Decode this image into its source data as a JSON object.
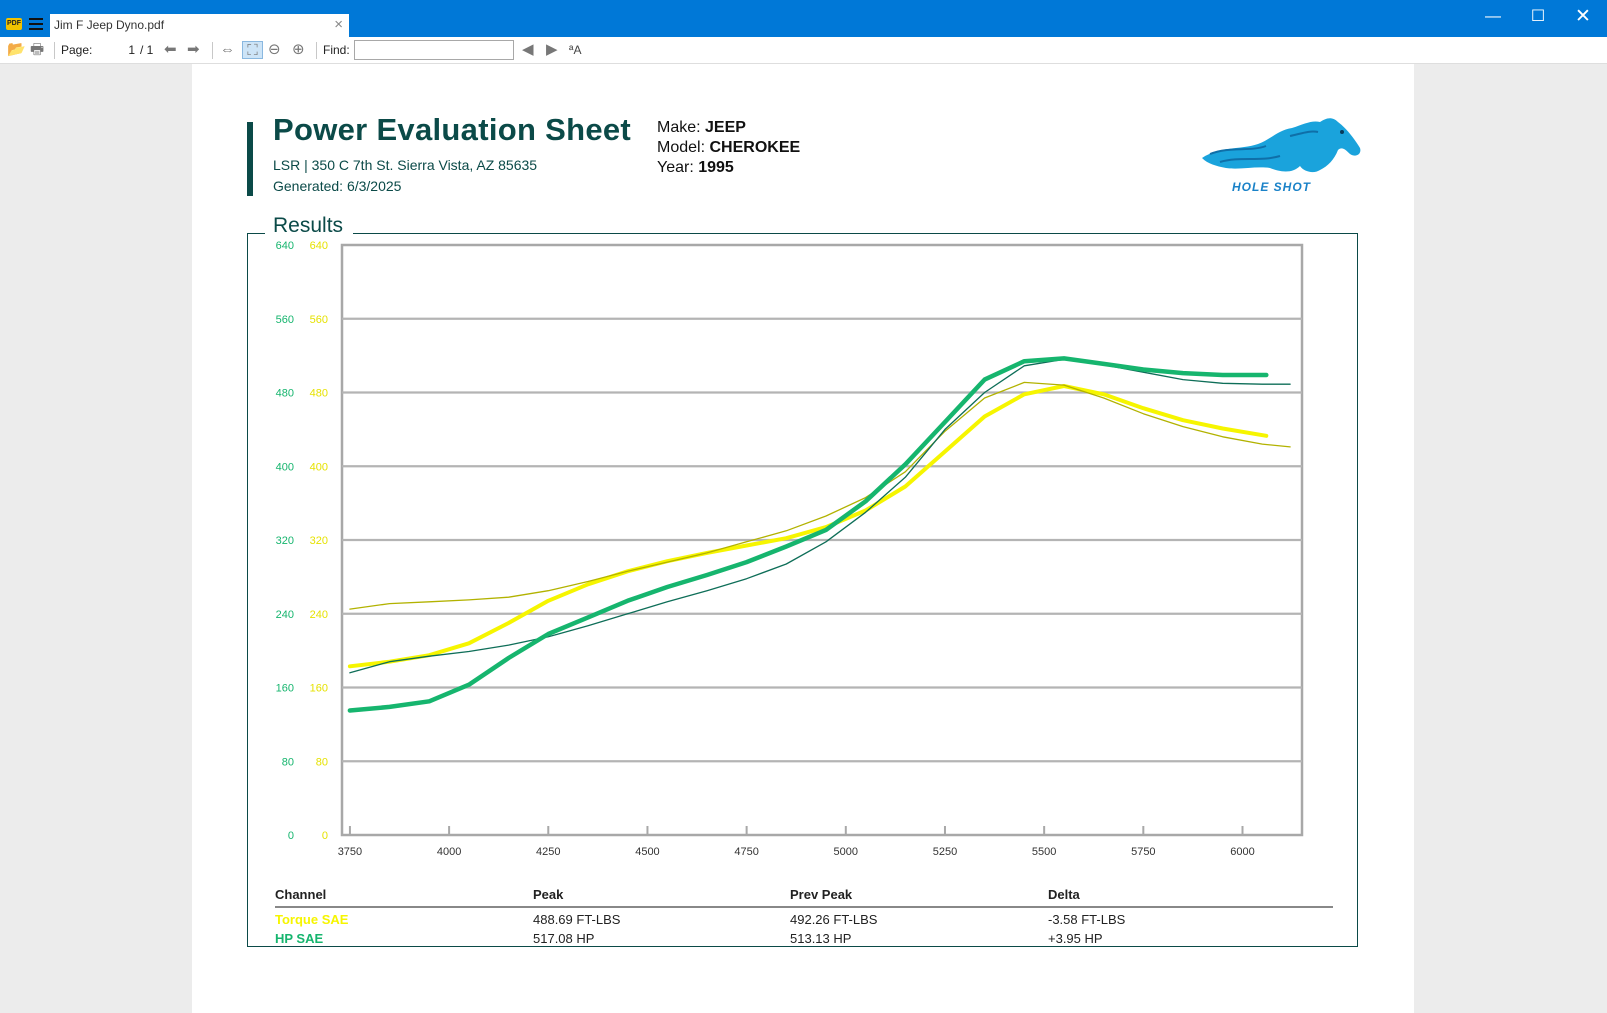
{
  "window": {
    "tab_title": "Jim F Jeep Dyno.pdf",
    "close_glyph": "×",
    "min_glyph": "—",
    "max_glyph": "☐",
    "closewin_glyph": "✕"
  },
  "toolbar": {
    "page_label": "Page:",
    "page_value": "1",
    "page_total": "/ 1",
    "find_label": "Find:",
    "find_value": "",
    "icons": [
      "open-icon",
      "print-icon",
      "prev-page-icon",
      "next-page-icon",
      "fit-width-icon",
      "fit-page-icon",
      "zoom-out-icon",
      "zoom-in-icon",
      "find-prev-icon",
      "find-next-icon",
      "match-case-icon"
    ]
  },
  "sheet": {
    "title": "Power Evaluation Sheet",
    "address": "LSR | 350 C 7th St. Sierra Vista, AZ 85635",
    "generated": "Generated: 6/3/2025",
    "make_label": "Make:",
    "make_value": "JEEP",
    "model_label": "Model:",
    "model_value": "CHEROKEE",
    "year_label": "Year:",
    "year_value": "1995",
    "logo_text": "HOLE SHOT",
    "results_title": "Results"
  },
  "colors": {
    "torque": "#f6f500",
    "torque_prev": "#b2b200",
    "hp": "#16b56e",
    "hp_prev": "#0e6e58",
    "accent": "#0b4a48"
  },
  "chart_data": {
    "type": "line",
    "xlim": [
      3730,
      6150
    ],
    "ylim": [
      0,
      640
    ],
    "x_ticks": [
      "3750",
      "4000",
      "4250",
      "4500",
      "4750",
      "5000",
      "5250",
      "5500",
      "5750",
      "6000"
    ],
    "y_ticks": [
      "0",
      "80",
      "160",
      "240",
      "320",
      "400",
      "480",
      "560",
      "640"
    ],
    "grid": true,
    "series": [
      {
        "name": "Torque SAE",
        "color": "#f6f500",
        "width": 4,
        "points": [
          [
            3750,
            183
          ],
          [
            3850,
            188
          ],
          [
            3950,
            195
          ],
          [
            4050,
            208
          ],
          [
            4150,
            230
          ],
          [
            4250,
            254
          ],
          [
            4350,
            272
          ],
          [
            4450,
            286
          ],
          [
            4550,
            297
          ],
          [
            4650,
            306
          ],
          [
            4750,
            314
          ],
          [
            4850,
            322
          ],
          [
            4950,
            334
          ],
          [
            5050,
            352
          ],
          [
            5150,
            378
          ],
          [
            5250,
            416
          ],
          [
            5350,
            454
          ],
          [
            5450,
            478
          ],
          [
            5550,
            487
          ],
          [
            5650,
            478
          ],
          [
            5750,
            463
          ],
          [
            5850,
            450
          ],
          [
            5950,
            441
          ],
          [
            6060,
            433
          ]
        ]
      },
      {
        "name": "Torque SAE Prev",
        "color": "#b2b200",
        "width": 1.3,
        "points": [
          [
            3750,
            245
          ],
          [
            3850,
            251
          ],
          [
            3950,
            253
          ],
          [
            4050,
            255
          ],
          [
            4150,
            258
          ],
          [
            4250,
            265
          ],
          [
            4350,
            275
          ],
          [
            4450,
            286
          ],
          [
            4550,
            296
          ],
          [
            4650,
            306
          ],
          [
            4750,
            318
          ],
          [
            4850,
            330
          ],
          [
            4950,
            346
          ],
          [
            5050,
            366
          ],
          [
            5150,
            394
          ],
          [
            5250,
            438
          ],
          [
            5350,
            474
          ],
          [
            5450,
            491
          ],
          [
            5550,
            488
          ],
          [
            5650,
            474
          ],
          [
            5750,
            457
          ],
          [
            5850,
            443
          ],
          [
            5950,
            432
          ],
          [
            6050,
            424
          ],
          [
            6120,
            421
          ]
        ]
      },
      {
        "name": "HP SAE Prev",
        "color": "#0e6e58",
        "width": 1.3,
        "points": [
          [
            3750,
            176
          ],
          [
            3850,
            188
          ],
          [
            3950,
            194
          ],
          [
            4050,
            199
          ],
          [
            4150,
            206
          ],
          [
            4250,
            215
          ],
          [
            4350,
            227
          ],
          [
            4450,
            240
          ],
          [
            4550,
            253
          ],
          [
            4650,
            265
          ],
          [
            4750,
            278
          ],
          [
            4850,
            294
          ],
          [
            4950,
            318
          ],
          [
            5050,
            350
          ],
          [
            5150,
            388
          ],
          [
            5250,
            440
          ],
          [
            5350,
            480
          ],
          [
            5450,
            509
          ],
          [
            5550,
            516
          ],
          [
            5650,
            510
          ],
          [
            5750,
            502
          ],
          [
            5850,
            494
          ],
          [
            5950,
            490
          ],
          [
            6050,
            489
          ],
          [
            6120,
            489
          ]
        ]
      },
      {
        "name": "HP SAE",
        "color": "#16b56e",
        "width": 4.5,
        "points": [
          [
            3750,
            135
          ],
          [
            3850,
            139
          ],
          [
            3950,
            145
          ],
          [
            4050,
            163
          ],
          [
            4150,
            192
          ],
          [
            4250,
            218
          ],
          [
            4350,
            236
          ],
          [
            4450,
            254
          ],
          [
            4550,
            269
          ],
          [
            4650,
            282
          ],
          [
            4750,
            296
          ],
          [
            4850,
            313
          ],
          [
            4950,
            331
          ],
          [
            5050,
            362
          ],
          [
            5150,
            402
          ],
          [
            5250,
            448
          ],
          [
            5350,
            494
          ],
          [
            5450,
            514
          ],
          [
            5550,
            517
          ],
          [
            5650,
            511
          ],
          [
            5750,
            505
          ],
          [
            5850,
            501
          ],
          [
            5950,
            499
          ],
          [
            6060,
            499
          ]
        ]
      }
    ]
  },
  "table": {
    "headers": [
      "Channel",
      "Peak",
      "Prev Peak",
      "Delta"
    ],
    "rows": [
      {
        "channel": "Torque SAE",
        "peak": "488.69 FT-LBS",
        "prev": "492.26 FT-LBS",
        "delta": "-3.58 FT-LBS"
      },
      {
        "channel": "HP SAE",
        "peak": "517.08 HP",
        "prev": "513.13 HP",
        "delta": "+3.95 HP"
      }
    ]
  }
}
